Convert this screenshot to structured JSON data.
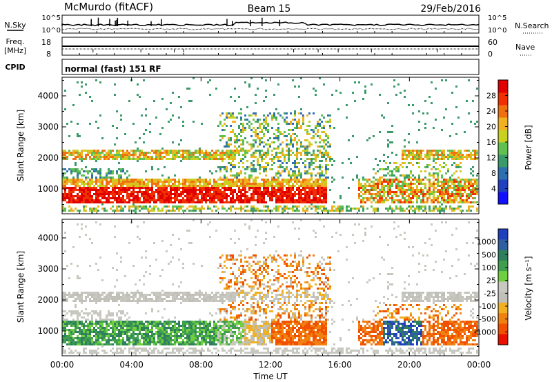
{
  "header": {
    "station": "McMurdo (fitACF)",
    "beam": "Beam 15",
    "date": "29/Feb/2016"
  },
  "top_panels": {
    "nsky_label": "N.Sky",
    "nsearch_label": "N.Search",
    "freq_label_line1": "Freq.",
    "freq_label_line2": "[MHz]",
    "nave_label": "Nave",
    "cpid_label": "CPID",
    "mode_text": "normal (fast) 151 RF",
    "noise_axis_labels": [
      "10^5",
      "10^0"
    ],
    "freq_ticks": [
      18,
      8
    ],
    "nave_ticks": [
      60,
      0
    ]
  },
  "chart_data": [
    {
      "type": "heatmap",
      "name": "power-panel",
      "ylabel": "Slant Range [km]",
      "yticks": [
        1000,
        2000,
        3000,
        4000
      ],
      "ylim": [
        200,
        4600
      ],
      "xlim_hours": [
        0,
        24
      ],
      "colorbar": {
        "label": "Power [dB]",
        "ticks": [
          4,
          8,
          12,
          16,
          20,
          24,
          28
        ],
        "range": [
          0,
          32
        ],
        "colors": [
          "#1010ff",
          "#2040c0",
          "#2f6fb0",
          "#3a9a6a",
          "#60c050",
          "#c8d020",
          "#f0b020",
          "#f07010",
          "#f03000",
          "#e00000"
        ]
      }
    },
    {
      "type": "heatmap",
      "name": "velocity-panel",
      "ylabel": "Slant Range [km]",
      "yticks": [
        1000,
        2000,
        3000,
        4000
      ],
      "ylim": [
        200,
        4600
      ],
      "xlabel": "Time UT",
      "xticks": [
        "00:00",
        "04:00",
        "08:00",
        "12:00",
        "16:00",
        "20:00",
        "00:00"
      ],
      "xlim_hours": [
        0,
        24
      ],
      "colorbar": {
        "label": "Velocity [m s⁻¹]",
        "ticks": [
          "1000",
          "500",
          "100",
          "25",
          "-25",
          "-100",
          "-500",
          "-1000"
        ],
        "colors": [
          "#1f3fbf",
          "#2f5fa0",
          "#2f7f5f",
          "#3f9f4f",
          "#6fcf3f",
          "#c8c8c0",
          "#c0c0b8",
          "#f0b020",
          "#f08010",
          "#f05000",
          "#e81000"
        ]
      }
    }
  ]
}
